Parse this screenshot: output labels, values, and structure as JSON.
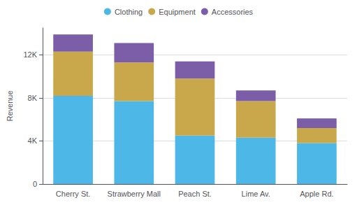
{
  "chart_data": {
    "type": "bar",
    "stacked": true,
    "categories": [
      "Cherry St.",
      "Strawberry Mall",
      "Peach St.",
      "Lime Av.",
      "Apple Rd."
    ],
    "series": [
      {
        "name": "Clothing",
        "color": "#4db8e8",
        "values": [
          8200,
          7700,
          4500,
          4300,
          3800
        ]
      },
      {
        "name": "Equipment",
        "color": "#c8a84b",
        "values": [
          4100,
          3600,
          5300,
          3400,
          1400
        ]
      },
      {
        "name": "Accessories",
        "color": "#7b5ea7",
        "values": [
          1600,
          1800,
          1600,
          1000,
          900
        ]
      }
    ],
    "ylabel": "Revenue",
    "ylim": [
      0,
      14500
    ],
    "yticks": [
      0,
      {
        "value": 4000,
        "label": "4K"
      },
      {
        "value": 8000,
        "label": "8K"
      },
      {
        "value": 12000,
        "label": "12K"
      }
    ],
    "grid": true,
    "legend": "top"
  }
}
